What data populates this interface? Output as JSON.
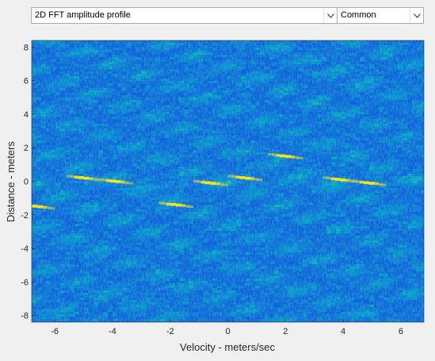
{
  "controls": {
    "plot_select": {
      "value": "2D FFT amplitude profile"
    },
    "mode_select": {
      "value": "Common"
    }
  },
  "colors": {
    "background": "#f0f0f0",
    "heatmap_low": "#1f5fd6",
    "heatmap_mid": "#1fa7c9",
    "heatmap_high": "#f5e020"
  },
  "chart_data": {
    "type": "heatmap",
    "title": "",
    "xlabel": "Velocity - meters/sec",
    "ylabel": "Distance - meters",
    "xlim": [
      -6.8,
      6.8
    ],
    "ylim": [
      -8.4,
      8.4
    ],
    "xticks": [
      -6,
      -4,
      -2,
      0,
      2,
      4,
      6
    ],
    "yticks": [
      8,
      6,
      4,
      2,
      0,
      -2,
      -4,
      -6,
      -8
    ],
    "colormap": "parula",
    "hotspots": [
      {
        "x": -5.0,
        "y": 0.2
      },
      {
        "x": -3.9,
        "y": 0.0
      },
      {
        "x": -1.8,
        "y": -1.4
      },
      {
        "x": -0.6,
        "y": -0.1
      },
      {
        "x": 0.6,
        "y": 0.2
      },
      {
        "x": 2.0,
        "y": 1.5
      },
      {
        "x": 3.9,
        "y": 0.1
      },
      {
        "x": 4.9,
        "y": -0.1
      },
      {
        "x": -6.6,
        "y": -1.5
      }
    ]
  }
}
